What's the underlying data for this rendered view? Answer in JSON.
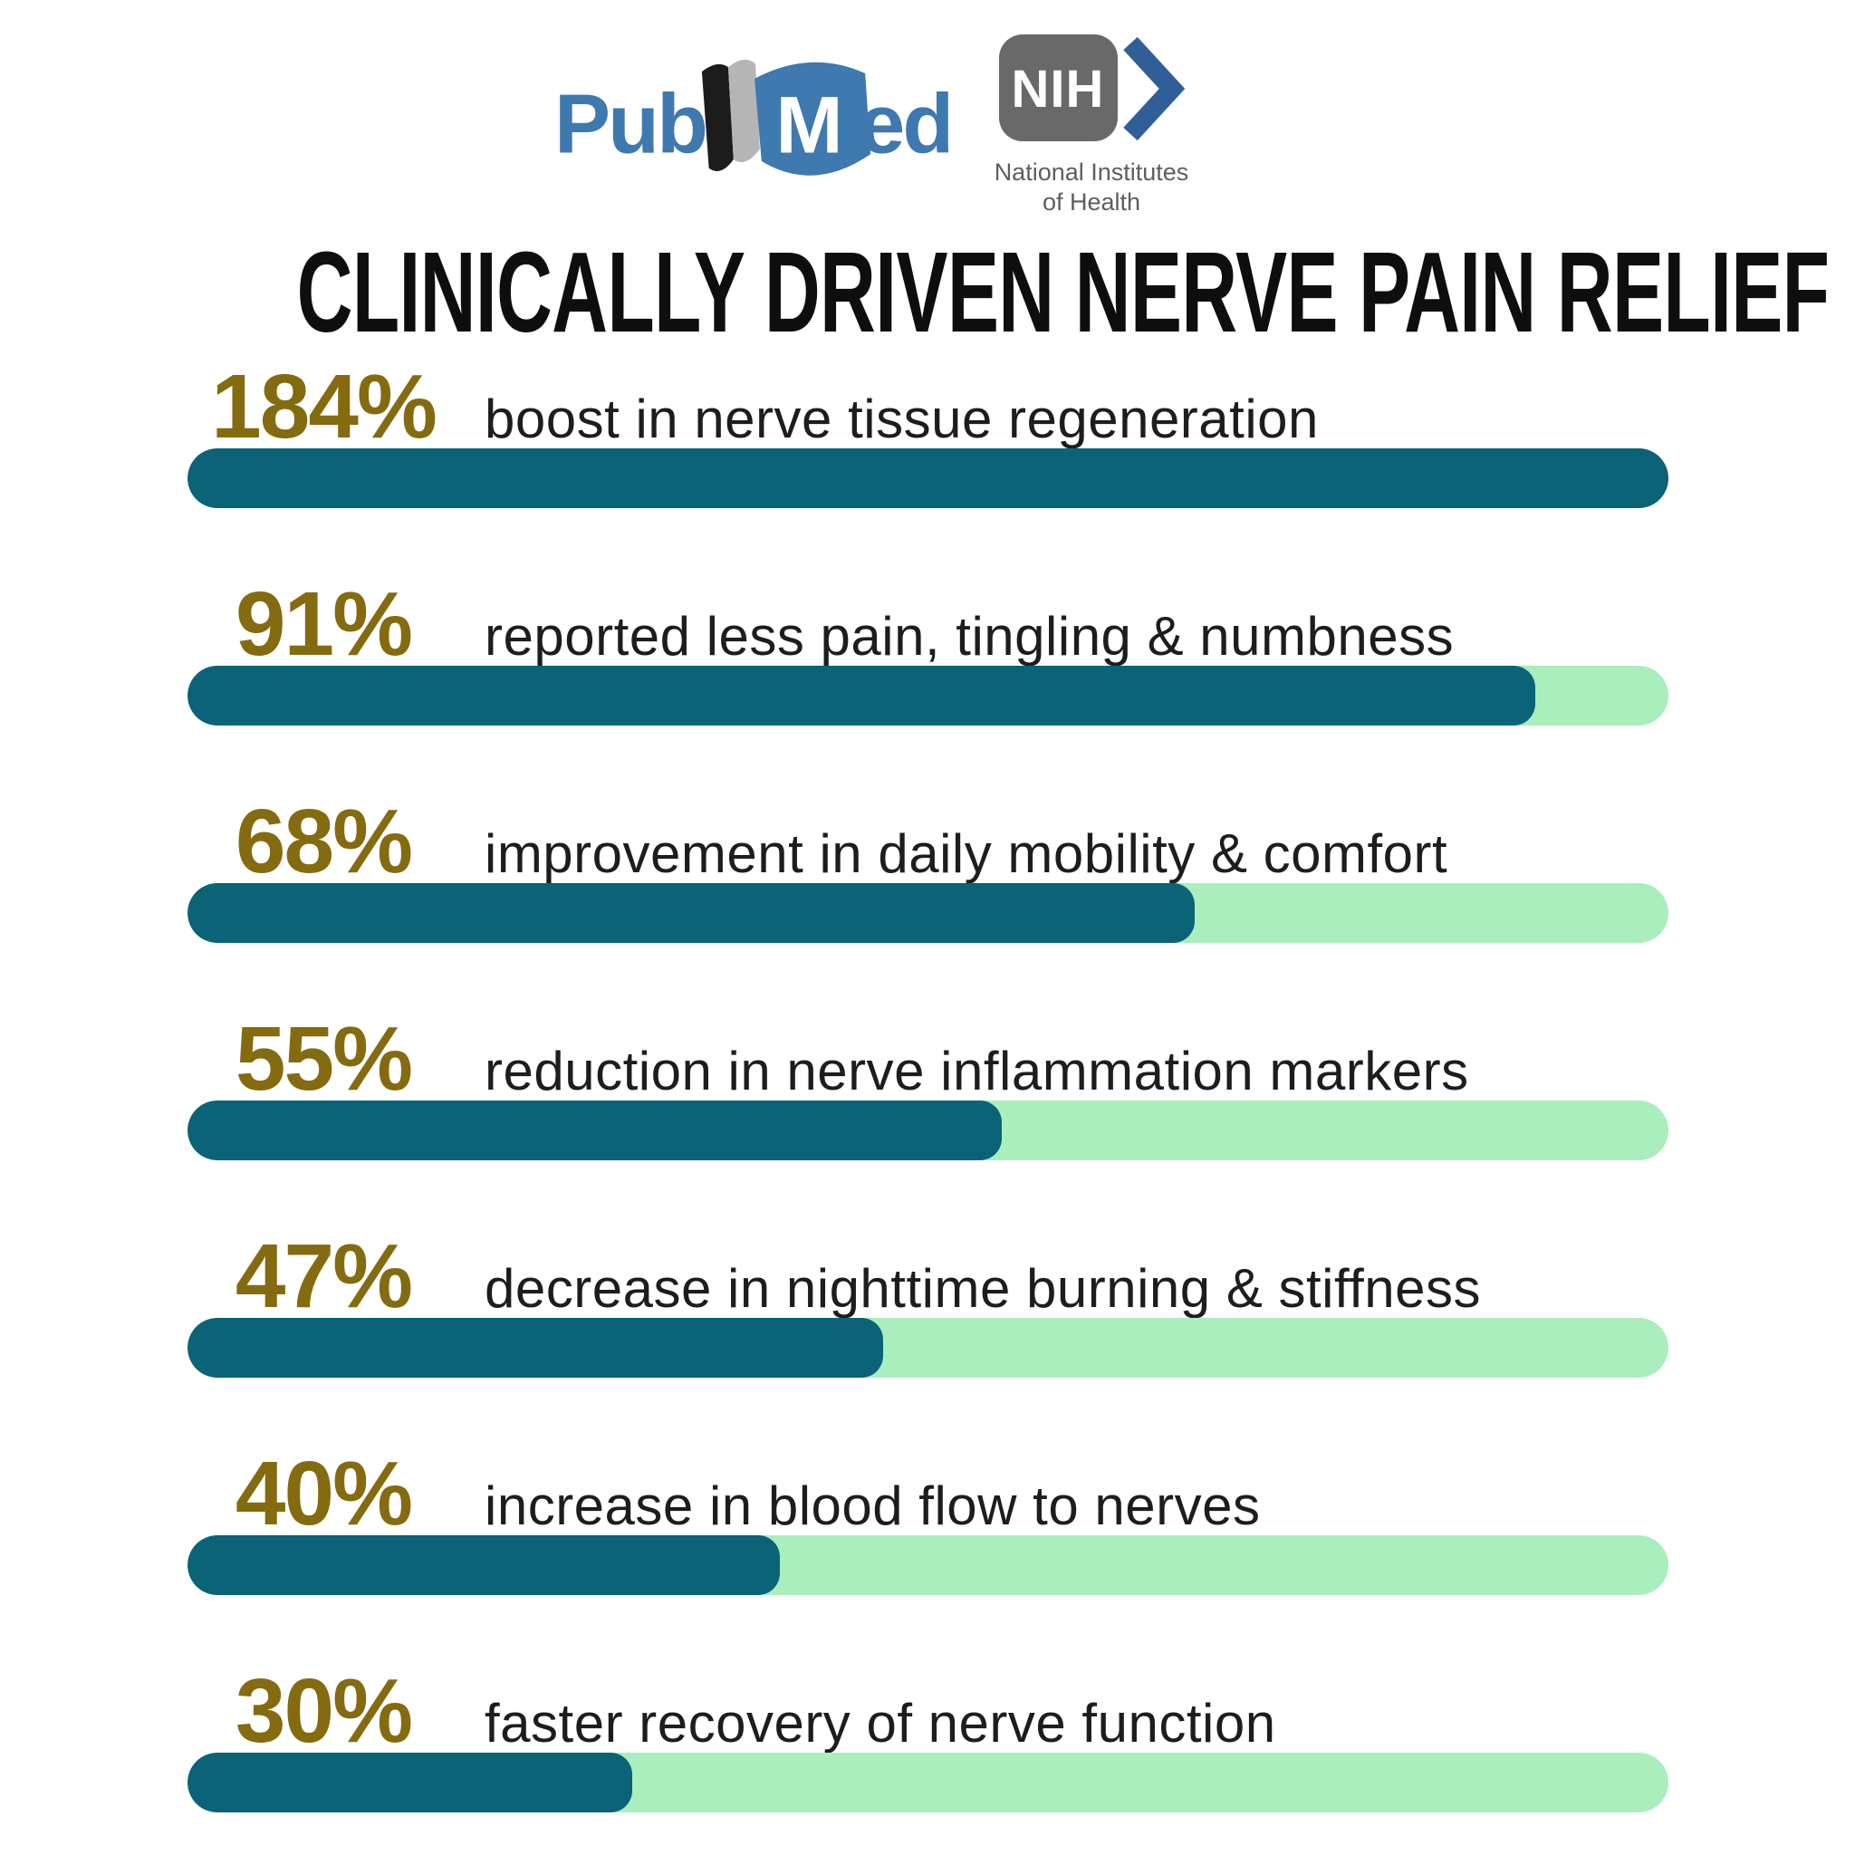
{
  "title": "CLINICALLY DRIVEN NERVE PAIN RELIEF",
  "header": {
    "pubmed_logo": {
      "pub": "Pub",
      "m": "M",
      "ed": "ed"
    },
    "nih_logo": {
      "acronym": "NIH",
      "caption_line1": "National Institutes",
      "caption_line2": "of Health"
    }
  },
  "colors": {
    "bar_fill_teal": "#0A6377",
    "bar_track_green": "#A9EEBC",
    "value_gold": "#856B10",
    "title_black": "#0e0e0e",
    "pubmed_blue": "#3E79AF",
    "nih_gray": "#696969",
    "nih_chevron_blue": "#2F5F96"
  },
  "stats": [
    {
      "value": "184%",
      "label": "boost in nerve tissue regeneration",
      "fill_percent": 100
    },
    {
      "value": "91%",
      "label": "reported less pain, tingling & numbness",
      "fill_percent": 91
    },
    {
      "value": "68%",
      "label": "improvement in daily mobility & comfort",
      "fill_percent": 68
    },
    {
      "value": "55%",
      "label": "reduction in nerve inflammation markers",
      "fill_percent": 55
    },
    {
      "value": "47%",
      "label": "decrease in nighttime burning & stiffness",
      "fill_percent": 47
    },
    {
      "value": "40%",
      "label": "increase in blood flow to nerves",
      "fill_percent": 40
    },
    {
      "value": "30%",
      "label": "faster recovery of nerve function",
      "fill_percent": 30
    }
  ],
  "chart_data": {
    "type": "bar",
    "orientation": "horizontal",
    "title": "CLINICALLY DRIVEN NERVE PAIN RELIEF",
    "categories": [
      "boost in nerve tissue regeneration",
      "reported less pain, tingling & numbness",
      "improvement in daily mobility & comfort",
      "reduction in nerve inflammation markers",
      "decrease in nighttime burning & stiffness",
      "increase in blood flow to nerves",
      "faster recovery of nerve function"
    ],
    "values": [
      184,
      91,
      68,
      55,
      47,
      40,
      30
    ],
    "unit": "%",
    "bar_display_fill_percent": [
      100,
      91,
      68,
      55,
      47,
      40,
      30
    ],
    "value_labels_shown": [
      "184%",
      "91%",
      "68%",
      "55%",
      "47%",
      "40%",
      "30%"
    ],
    "xlabel": "",
    "ylabel": "",
    "xlim": [
      0,
      100
    ],
    "grid": false,
    "legend": false,
    "notes": "Each row: gold percentage + description above a pill progress bar; teal fill over mint-green track; 184% row is fully filled."
  }
}
